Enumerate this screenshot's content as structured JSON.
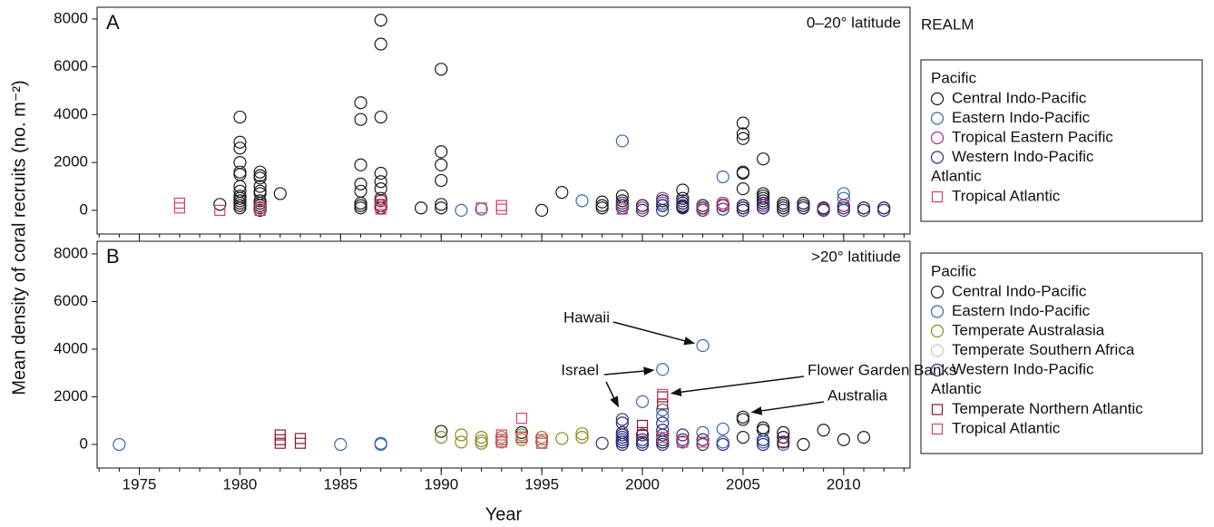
{
  "chart_data": [
    {
      "type": "scatter",
      "panel_label": "A",
      "annotation": "0–20° latitude",
      "ylabel": "Mean density of coral recruits (no. m⁻²)",
      "legend_title": "REALM",
      "xlim": [
        1972.9,
        2013.3
      ],
      "ylim": [
        -990,
        8490
      ],
      "xticks": [
        1975,
        1980,
        1985,
        1990,
        1995,
        2000,
        2005,
        2010
      ],
      "xminorticks": [
        1973,
        1974,
        1975,
        1976,
        1977,
        1978,
        1979,
        1980,
        1981,
        1982,
        1983,
        1984,
        1985,
        1986,
        1987,
        1988,
        1989,
        1990,
        1991,
        1992,
        1993,
        1994,
        1995,
        1996,
        1997,
        1998,
        1999,
        2000,
        2001,
        2002,
        2003,
        2004,
        2005,
        2006,
        2007,
        2008,
        2009,
        2010,
        2011,
        2012,
        2013
      ],
      "yticks": [
        0,
        2000,
        4000,
        6000,
        8000
      ],
      "series": [
        {
          "name": "Central Indo-Pacific",
          "realm": "Pacific",
          "marker": "circle",
          "color": "#1a1a1a",
          "x": [
            1979,
            1980,
            1980,
            1980,
            1980,
            1980,
            1980,
            1980,
            1980,
            1980,
            1980,
            1980,
            1980,
            1980,
            1980,
            1981,
            1981,
            1981,
            1981,
            1981,
            1981,
            1981,
            1981,
            1981,
            1981,
            1981,
            1982,
            1986,
            1986,
            1986,
            1986,
            1986,
            1986,
            1986,
            1986,
            1987,
            1987,
            1987,
            1987,
            1987,
            1987,
            1987,
            1987,
            1987,
            1987,
            1989,
            1990,
            1990,
            1990,
            1990,
            1990,
            1990,
            1995,
            1996,
            1998,
            1998,
            1998,
            1999,
            1999,
            1999,
            2000,
            2001,
            2001,
            2002,
            2002,
            2002,
            2002,
            2003,
            2003,
            2004,
            2005,
            2005,
            2005,
            2005,
            2005,
            2005,
            2005,
            2005,
            2006,
            2006,
            2006,
            2006,
            2006,
            2006,
            2006,
            2006,
            2007,
            2007,
            2007,
            2008,
            2008,
            2008,
            2009,
            2010,
            2011,
            2012
          ],
          "y": [
            250,
            3900,
            2850,
            2600,
            2000,
            1600,
            1500,
            1000,
            800,
            600,
            500,
            400,
            300,
            200,
            100,
            1600,
            1450,
            1350,
            1000,
            800,
            700,
            400,
            300,
            200,
            100,
            0,
            700,
            4500,
            3800,
            1900,
            1100,
            800,
            300,
            200,
            100,
            7950,
            6950,
            3900,
            1550,
            1200,
            900,
            500,
            400,
            200,
            100,
            100,
            5900,
            2450,
            1900,
            1250,
            250,
            100,
            0,
            750,
            350,
            200,
            100,
            600,
            400,
            200,
            200,
            400,
            200,
            850,
            500,
            300,
            150,
            200,
            100,
            200,
            3650,
            3200,
            3000,
            1600,
            1550,
            900,
            200,
            100,
            2150,
            700,
            600,
            500,
            400,
            300,
            200,
            100,
            300,
            200,
            100,
            300,
            200,
            100,
            100,
            200,
            100,
            100
          ]
        },
        {
          "name": "Eastern Indo-Pacific",
          "realm": "Pacific",
          "marker": "circle",
          "color": "#3a66b0",
          "x": [
            1991,
            1992,
            1997,
            1999,
            2001,
            2003,
            2004,
            2010,
            2010
          ],
          "y": [
            0,
            50,
            400,
            2900,
            300,
            100,
            1400,
            700,
            500
          ]
        },
        {
          "name": "Tropical Eastern Pacific",
          "realm": "Pacific",
          "marker": "circle",
          "color": "#a0308a",
          "x": [
            1999,
            2000,
            2001,
            2002,
            2004,
            2005,
            2006,
            2009,
            2010
          ],
          "y": [
            100,
            100,
            500,
            100,
            300,
            100,
            200,
            50,
            200
          ]
        },
        {
          "name": "Western Indo-Pacific",
          "realm": "Pacific",
          "marker": "circle",
          "color": "#2c2f7a",
          "x": [
            1999,
            1999,
            2000,
            2001,
            2001,
            2002,
            2002,
            2002,
            2003,
            2003,
            2004,
            2004,
            2005,
            2005,
            2006,
            2006,
            2007,
            2008,
            2009,
            2010,
            2010,
            2011,
            2012,
            2012
          ],
          "y": [
            300,
            100,
            0,
            200,
            0,
            400,
            200,
            100,
            100,
            0,
            200,
            50,
            100,
            0,
            300,
            100,
            0,
            100,
            0,
            100,
            0,
            0,
            0,
            100
          ]
        },
        {
          "name": "Tropical Atlantic",
          "realm": "Atlantic",
          "marker": "square",
          "color": "#d6416b",
          "x": [
            1977,
            1977,
            1979,
            1981,
            1981,
            1987,
            1987,
            1987,
            1987,
            1992,
            1993,
            1993,
            1999,
            2003,
            2004
          ],
          "y": [
            300,
            100,
            0,
            100,
            0,
            400,
            250,
            150,
            50,
            100,
            200,
            50,
            50,
            50,
            250
          ]
        }
      ]
    },
    {
      "type": "scatter",
      "panel_label": "B",
      "annotation": ">20° latitiude",
      "xlabel": "Year",
      "xlim": [
        1972.9,
        2013.3
      ],
      "ylim": [
        -990,
        8530
      ],
      "xticks": [
        1975,
        1980,
        1985,
        1990,
        1995,
        2000,
        2005,
        2010
      ],
      "xminorticks": [
        1973,
        1974,
        1975,
        1976,
        1977,
        1978,
        1979,
        1980,
        1981,
        1982,
        1983,
        1984,
        1985,
        1986,
        1987,
        1988,
        1989,
        1990,
        1991,
        1992,
        1993,
        1994,
        1995,
        1996,
        1997,
        1998,
        1999,
        2000,
        2001,
        2002,
        2003,
        2004,
        2005,
        2006,
        2007,
        2008,
        2009,
        2010,
        2011,
        2012,
        2013
      ],
      "yticks": [
        0,
        2000,
        4000,
        6000,
        8000
      ],
      "series": [
        {
          "name": "Central Indo-Pacific",
          "realm": "Pacific",
          "marker": "circle",
          "color": "#1a1a1a",
          "x": [
            1990,
            1994,
            1994,
            1999,
            2001,
            2005,
            2005,
            2005,
            2006,
            2006,
            2007,
            2007,
            2008,
            2009,
            2010,
            2011
          ],
          "y": [
            550,
            500,
            300,
            100,
            100,
            1150,
            1050,
            300,
            700,
            600,
            500,
            300,
            0,
            600,
            200,
            300
          ]
        },
        {
          "name": "Eastern Indo-Pacific",
          "realm": "Pacific",
          "marker": "circle",
          "color": "#3a66b0",
          "x": [
            1974,
            1985,
            1987,
            1987,
            2000,
            2001,
            2001,
            2001,
            2003,
            2003,
            2004,
            2004,
            2006,
            2007
          ],
          "y": [
            0,
            0,
            0,
            50,
            1800,
            3150,
            1450,
            1200,
            4150,
            500,
            650,
            100,
            100,
            0
          ]
        },
        {
          "name": "Temperate Australasia",
          "realm": "Pacific",
          "marker": "circle",
          "color": "#8a8a20",
          "x": [
            1990,
            1991,
            1991,
            1992,
            1992,
            1992,
            1993,
            1993,
            1994,
            1994,
            1995,
            1995,
            1996,
            1997,
            1997
          ],
          "y": [
            300,
            400,
            100,
            300,
            150,
            50,
            300,
            100,
            400,
            200,
            300,
            100,
            250,
            450,
            300
          ]
        },
        {
          "name": "Temperate Southern Africa",
          "realm": "Pacific",
          "marker": "circle",
          "color": "#c8c8c8",
          "x": [
            1993,
            1994
          ],
          "y": [
            200,
            300
          ]
        },
        {
          "name": "Western Indo-Pacific",
          "realm": "Pacific",
          "marker": "circle",
          "color": "#2c2f7a",
          "x": [
            1998,
            1999,
            1999,
            1999,
            1999,
            1999,
            1999,
            1999,
            1999,
            2000,
            2000,
            2000,
            2000,
            2001,
            2001,
            2001,
            2001,
            2001,
            2002,
            2002,
            2002,
            2003,
            2003,
            2004,
            2006,
            2006,
            2007
          ],
          "y": [
            50,
            1050,
            900,
            500,
            400,
            300,
            200,
            100,
            0,
            400,
            200,
            100,
            0,
            900,
            600,
            400,
            200,
            0,
            400,
            200,
            100,
            200,
            0,
            0,
            200,
            0,
            100
          ]
        },
        {
          "name": "Temperate Northern Atlantic",
          "realm": "Atlantic",
          "marker": "square",
          "color": "#8b1a2a",
          "x": [
            1982,
            1982,
            1982,
            1983,
            1983,
            2000,
            2000,
            2001,
            2001,
            2007
          ],
          "y": [
            400,
            200,
            50,
            250,
            50,
            800,
            500,
            2000,
            1700,
            100
          ]
        },
        {
          "name": "Tropical Atlantic",
          "realm": "Atlantic",
          "marker": "square",
          "color": "#d6416b",
          "x": [
            1993,
            1993,
            1993,
            1994,
            1994,
            1995,
            1995,
            2001,
            2001,
            2002,
            2003
          ],
          "y": [
            400,
            200,
            100,
            1100,
            300,
            200,
            50,
            2100,
            300,
            100,
            100
          ]
        }
      ],
      "point_annotations": [
        {
          "text": "Hawaii",
          "points": [
            [
              2003,
              4150
            ]
          ]
        },
        {
          "text": "Israel",
          "points": [
            [
              2001,
              3150
            ],
            [
              1999,
              1250
            ]
          ]
        },
        {
          "text": "Flower Garden Banks",
          "points": [
            [
              2001,
              2100
            ]
          ]
        },
        {
          "text": "Australia",
          "points": [
            [
              2005,
              1300
            ]
          ]
        }
      ]
    }
  ]
}
